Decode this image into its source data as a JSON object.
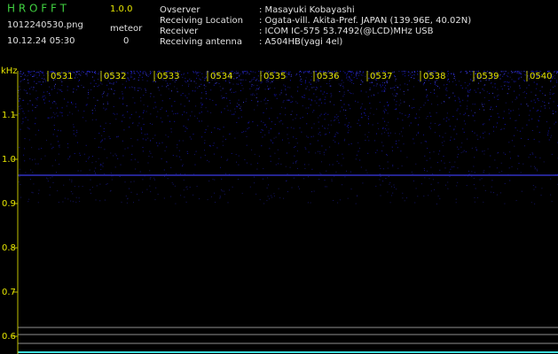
{
  "header": {
    "app_name": "H R O F F T",
    "version": "1.0.0",
    "file_name": "1012240530.png",
    "date_time": "10.12.24 05:30",
    "meteor_label": "meteor",
    "meteor_count": "0"
  },
  "info": [
    {
      "label": "Ovserver",
      "value": ": Masayuki Kobayashi"
    },
    {
      "label": "Receiving Location",
      "value": ": Ogata-vill. Akita-Pref. JAPAN (139.96E, 40.02N)"
    },
    {
      "label": "Receiver",
      "value": ": ICOM IC-575 53.7492(@LCD)MHz USB"
    },
    {
      "label": "Receiving antenna",
      "value": ": A504HB(yagi 4el)"
    }
  ],
  "spectrogram": {
    "unit": "kHz",
    "freq_labels": [
      "1.1",
      "1.0",
      "0.9",
      "0.8",
      "0.7",
      "0.6"
    ],
    "time_labels": [
      "0531",
      "0532",
      "0533",
      "0534",
      "0535",
      "0536",
      "0537",
      "0538",
      "0539",
      "0540"
    ]
  }
}
